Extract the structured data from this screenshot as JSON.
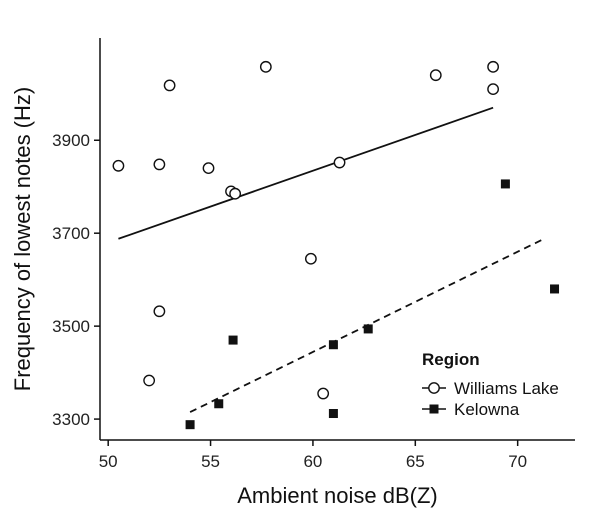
{
  "chart_data": {
    "type": "scatter",
    "xlabel": "Ambient noise dB(Z)",
    "ylabel": "Frequency of lowest notes (Hz)",
    "xlim": [
      49.6,
      72.8
    ],
    "ylim": [
      3255,
      4120
    ],
    "xticks": [
      50,
      55,
      60,
      65,
      70
    ],
    "yticks": [
      3300,
      3500,
      3700,
      3900
    ],
    "legend": {
      "title": "Region",
      "position": "bottom-right"
    },
    "grid": false,
    "series": [
      {
        "name": "Williams Lake",
        "marker": "open-circle",
        "line_style": "solid",
        "color": "#111111",
        "points": [
          {
            "x": 50.5,
            "y": 3845
          },
          {
            "x": 52.0,
            "y": 3383
          },
          {
            "x": 52.5,
            "y": 3848
          },
          {
            "x": 52.5,
            "y": 3532
          },
          {
            "x": 53.0,
            "y": 4018
          },
          {
            "x": 54.9,
            "y": 3840
          },
          {
            "x": 56.0,
            "y": 3790
          },
          {
            "x": 56.2,
            "y": 3785
          },
          {
            "x": 57.7,
            "y": 4058
          },
          {
            "x": 59.9,
            "y": 3645
          },
          {
            "x": 60.5,
            "y": 3355
          },
          {
            "x": 61.3,
            "y": 3852
          },
          {
            "x": 66.0,
            "y": 4040
          },
          {
            "x": 68.8,
            "y": 4058
          },
          {
            "x": 68.8,
            "y": 4010
          }
        ],
        "trend": {
          "x": [
            50.5,
            68.8
          ],
          "y": [
            3688,
            3970
          ]
        }
      },
      {
        "name": "Kelowna",
        "marker": "filled-square",
        "line_style": "dashed",
        "color": "#111111",
        "points": [
          {
            "x": 54.0,
            "y": 3288
          },
          {
            "x": 55.4,
            "y": 3333
          },
          {
            "x": 56.1,
            "y": 3470
          },
          {
            "x": 61.0,
            "y": 3460
          },
          {
            "x": 61.0,
            "y": 3312
          },
          {
            "x": 62.7,
            "y": 3494
          },
          {
            "x": 69.4,
            "y": 3806
          },
          {
            "x": 71.8,
            "y": 3580
          }
        ],
        "trend": {
          "x": [
            54.0,
            71.2
          ],
          "y": [
            3315,
            3686
          ]
        }
      }
    ]
  }
}
